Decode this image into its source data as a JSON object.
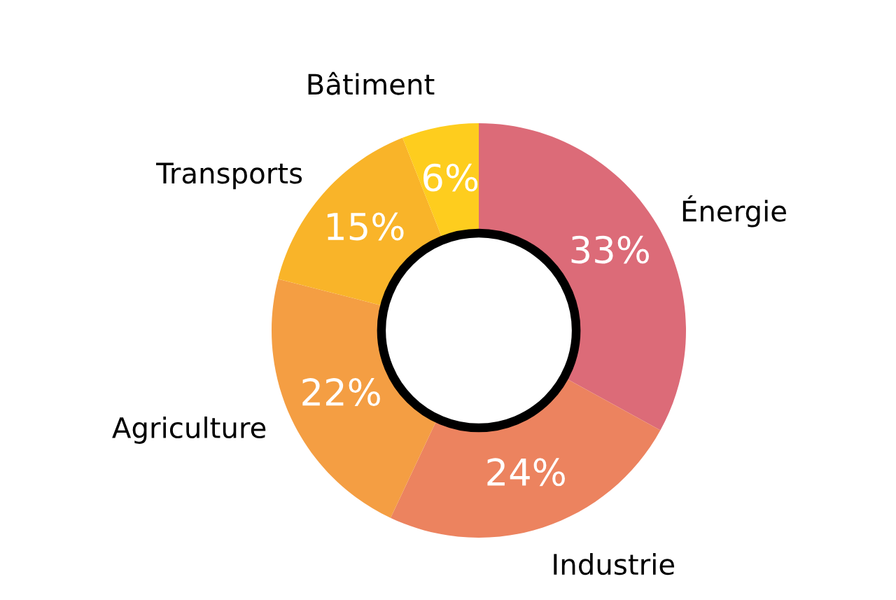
{
  "chart_data": {
    "type": "donut",
    "categories": [
      "Énergie",
      "Industrie",
      "Agriculture",
      "Transports",
      "Bâtiment"
    ],
    "values": [
      33,
      24,
      22,
      15,
      6
    ],
    "colors": [
      "#dc6b78",
      "#ec835f",
      "#f49e43",
      "#f9b429",
      "#fecd1e"
    ],
    "value_labels": [
      "33%",
      "24%",
      "22%",
      "15%",
      "6%"
    ]
  }
}
